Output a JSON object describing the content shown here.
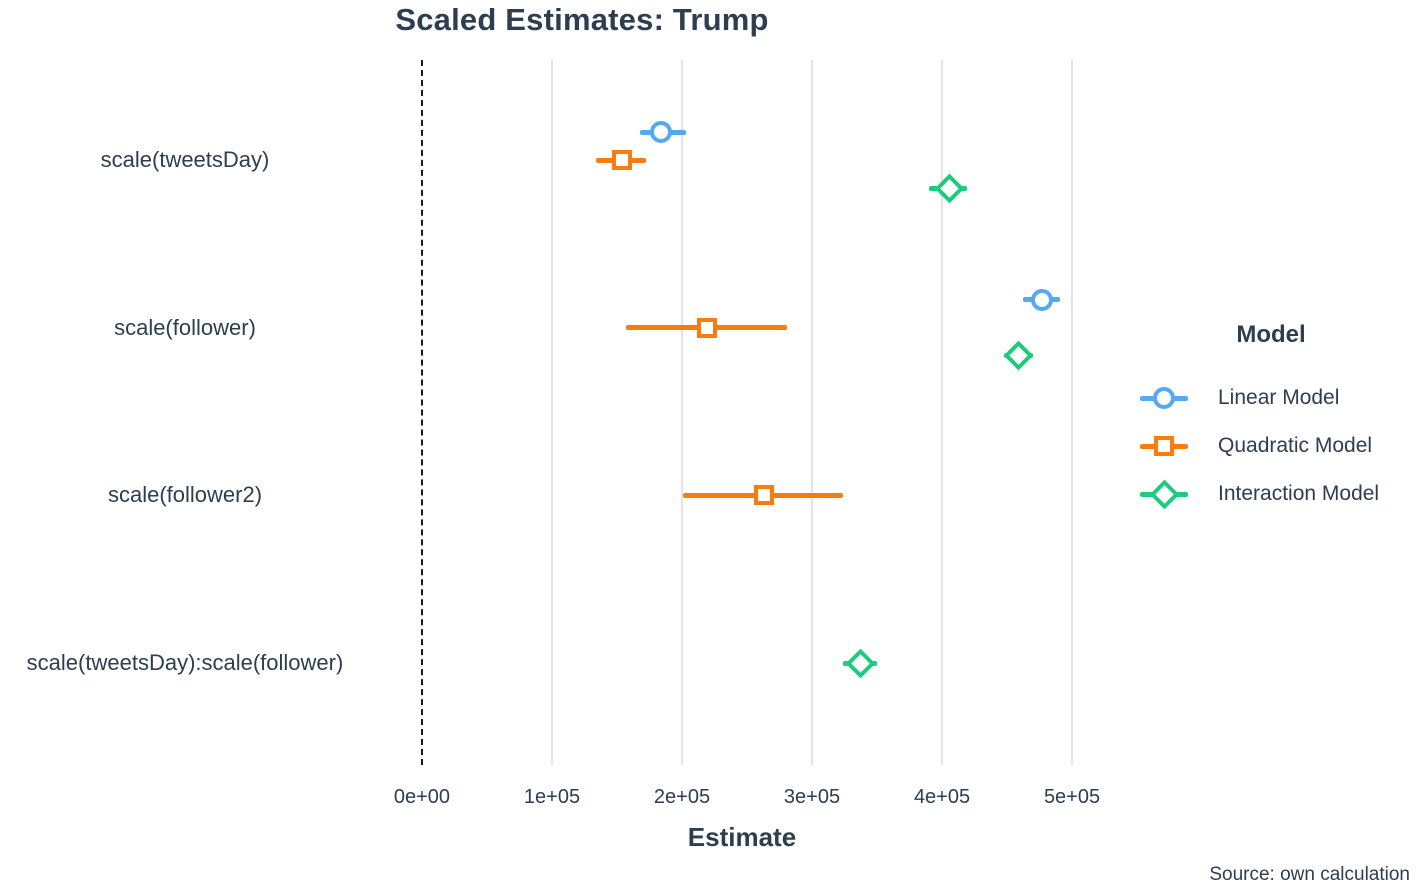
{
  "chart_data": {
    "type": "scatter",
    "title": "Scaled Estimates: Trump",
    "xlabel": "Estimate",
    "ylabel": "",
    "x_ticks": [
      "0e+00",
      "1e+05",
      "2e+05",
      "3e+05",
      "4e+05",
      "5e+05"
    ],
    "x_tick_values": [
      0,
      100000,
      200000,
      300000,
      400000,
      500000
    ],
    "xlim": [
      -16900,
      521500
    ],
    "zero_line": 0,
    "grid": "vertical-only",
    "categories": [
      "scale(tweetsDay)",
      "scale(follower)",
      "scale(follower2)",
      "scale(tweetsDay):scale(follower)"
    ],
    "series": [
      {
        "name": "Linear Model",
        "marker": "circle",
        "color": "#54A9F0",
        "points": [
          {
            "category": 0,
            "estimate": 184000,
            "low": 168000,
            "high": 203000
          },
          {
            "category": 1,
            "estimate": 477000,
            "low": 462000,
            "high": 491000
          }
        ]
      },
      {
        "name": "Quadratic Model",
        "marker": "square",
        "color": "#F97D0E",
        "points": [
          {
            "category": 0,
            "estimate": 154000,
            "low": 134000,
            "high": 172000
          },
          {
            "category": 1,
            "estimate": 219000,
            "low": 157000,
            "high": 281000
          },
          {
            "category": 2,
            "estimate": 263000,
            "low": 201000,
            "high": 324000
          }
        ]
      },
      {
        "name": "Interaction Model",
        "marker": "diamond",
        "color": "#1FC97E",
        "points": [
          {
            "category": 0,
            "estimate": 406000,
            "low": 390000,
            "high": 419000
          },
          {
            "category": 1,
            "estimate": 459000,
            "low": 448000,
            "high": 470000
          },
          {
            "category": 3,
            "estimate": 337000,
            "low": 324000,
            "high": 350000
          }
        ]
      }
    ],
    "legend": {
      "title": "Model",
      "position": "right"
    },
    "colors": {
      "text": "#2C3E50",
      "grid": "#E3E3E3",
      "zero_line": "#1A1A1A",
      "background": "#FFFFFF"
    },
    "source": "Source: own calculation"
  }
}
